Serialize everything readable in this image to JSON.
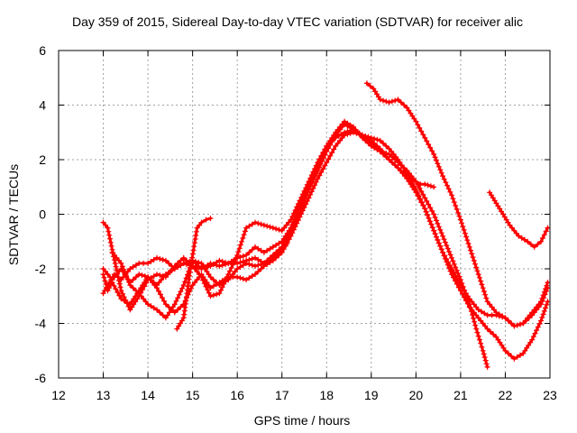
{
  "chart_data": {
    "type": "scatter",
    "title": "Day 359 of 2015, Sidereal Day-to-day VTEC variation (SDTVAR) for receiver alic",
    "xlabel": "GPS time / hours",
    "ylabel": "SDTVAR / TECUs",
    "xlim": [
      12,
      23
    ],
    "ylim": [
      -6,
      6
    ],
    "xticks": [
      12,
      13,
      14,
      15,
      16,
      17,
      18,
      19,
      20,
      21,
      22,
      23
    ],
    "yticks": [
      -6,
      -4,
      -2,
      0,
      2,
      4,
      6
    ],
    "grid": true,
    "marker": "+",
    "color": "#ff0000",
    "series": [
      {
        "name": "trace-1",
        "x": [
          13.0,
          13.1,
          13.25,
          13.4,
          13.6,
          13.8,
          14.0,
          14.2,
          14.4,
          14.6,
          14.8,
          15.0,
          15.2,
          15.4,
          15.6,
          15.8,
          16.0,
          16.2,
          16.4,
          16.6,
          16.8,
          17.0,
          17.2,
          17.4,
          17.6,
          17.8,
          18.0,
          18.2,
          18.4,
          18.6,
          18.8,
          19.0,
          19.2,
          19.4,
          19.6,
          19.8,
          20.0,
          20.2,
          20.4,
          20.6,
          20.8,
          21.0,
          21.2,
          21.4,
          21.6,
          21.8,
          22.0,
          22.2,
          22.4,
          22.6,
          22.8,
          22.95
        ],
        "y": [
          -2.9,
          -2.6,
          -2.2,
          -2.4,
          -2.0,
          -1.8,
          -1.8,
          -1.6,
          -1.7,
          -2.0,
          -1.8,
          -1.9,
          -2.0,
          -1.9,
          -1.7,
          -1.8,
          -1.8,
          -1.7,
          -1.6,
          -1.8,
          -1.5,
          -1.2,
          -0.6,
          0.1,
          0.9,
          1.6,
          2.3,
          2.9,
          3.3,
          3.1,
          2.9,
          2.6,
          2.3,
          2.0,
          1.7,
          1.3,
          0.8,
          0.2,
          -0.6,
          -1.4,
          -2.2,
          -2.8,
          -3.4,
          -3.8,
          -4.2,
          -4.5,
          -5.0,
          -5.3,
          -5.1,
          -4.6,
          -3.9,
          -3.2
        ]
      },
      {
        "name": "trace-2",
        "x": [
          13.0,
          13.2,
          13.4,
          13.6,
          13.8,
          14.0,
          14.2,
          14.4,
          14.6,
          14.8,
          15.0,
          15.2,
          15.4,
          15.6,
          15.8,
          16.0,
          16.2,
          16.4,
          16.6,
          16.8,
          17.0,
          17.2,
          17.4,
          17.6,
          17.8,
          18.0,
          18.2,
          18.4,
          18.6,
          18.8,
          19.0,
          19.2,
          19.4,
          19.6,
          19.8,
          20.0,
          20.2,
          20.4,
          20.6,
          20.8,
          21.0,
          21.2,
          21.35,
          21.5,
          21.6
        ],
        "y": [
          -2.0,
          -2.4,
          -2.0,
          -2.5,
          -2.2,
          -2.3,
          -2.6,
          -2.2,
          -2.0,
          -1.8,
          -1.7,
          -2.0,
          -1.8,
          -1.9,
          -1.8,
          -1.6,
          -1.5,
          -1.2,
          -1.4,
          -1.2,
          -1.0,
          -0.5,
          0.3,
          1.1,
          1.8,
          2.5,
          3.0,
          3.4,
          3.2,
          2.8,
          2.5,
          2.3,
          2.2,
          1.9,
          1.6,
          1.2,
          0.6,
          0.0,
          -0.8,
          -1.6,
          -2.4,
          -3.3,
          -4.2,
          -5.0,
          -5.6
        ]
      },
      {
        "name": "trace-3",
        "x": [
          13.0,
          13.1,
          13.2,
          13.4,
          13.6,
          13.8,
          14.0,
          14.2,
          14.4,
          14.6,
          14.8,
          15.0,
          15.2,
          15.4,
          15.6,
          15.8,
          16.0,
          16.2,
          16.4,
          16.6,
          16.8,
          17.0,
          17.2,
          17.4,
          17.6,
          17.8,
          18.0,
          18.2,
          18.4,
          18.6,
          18.8,
          19.0,
          19.2,
          19.4,
          19.6,
          19.8,
          20.0,
          20.2,
          20.4,
          20.6,
          20.8,
          21.0,
          21.2,
          21.4,
          21.6,
          21.8,
          22.0,
          22.2,
          22.4,
          22.6,
          22.8,
          22.95
        ],
        "y": [
          -2.2,
          -2.8,
          -2.5,
          -3.1,
          -3.3,
          -2.8,
          -2.3,
          -2.7,
          -3.3,
          -3.6,
          -3.3,
          -2.6,
          -2.2,
          -2.7,
          -2.5,
          -2.3,
          -2.3,
          -2.4,
          -2.2,
          -1.9,
          -1.7,
          -1.4,
          -0.8,
          -0.1,
          0.6,
          1.3,
          1.9,
          2.5,
          2.9,
          3.0,
          2.9,
          2.8,
          2.7,
          2.4,
          2.0,
          1.5,
          0.9,
          0.2,
          -0.6,
          -1.4,
          -2.0,
          -2.6,
          -3.1,
          -3.5,
          -3.7,
          -3.7,
          -3.8,
          -4.1,
          -4.0,
          -3.7,
          -3.3,
          -2.7
        ]
      },
      {
        "name": "trace-4",
        "x": [
          13.0,
          13.1,
          13.2,
          13.4,
          13.6,
          13.8,
          14.0,
          14.2,
          14.4,
          14.6,
          14.8,
          15.0,
          15.2,
          15.4,
          15.6,
          15.8,
          16.0,
          16.2,
          16.4,
          16.6,
          16.8,
          17.0,
          17.2,
          17.4,
          17.6,
          17.8,
          18.0,
          18.2,
          18.4,
          18.6,
          18.8,
          19.0,
          19.2,
          19.4,
          19.6,
          19.8,
          20.0,
          20.1,
          20.2,
          20.4
        ],
        "y": [
          -0.3,
          -0.5,
          -1.3,
          -2.8,
          -3.5,
          -3.0,
          -2.4,
          -2.2,
          -2.3,
          -1.9,
          -1.6,
          -1.9,
          -2.3,
          -3.0,
          -2.9,
          -2.2,
          -1.5,
          -0.5,
          -0.3,
          -0.4,
          -0.5,
          -0.6,
          -0.2,
          0.5,
          1.2,
          1.9,
          2.5,
          2.8,
          3.0,
          3.1,
          2.9,
          2.7,
          2.4,
          2.0,
          1.7,
          1.4,
          1.2,
          1.1,
          1.1,
          1.0
        ]
      },
      {
        "name": "trace-5",
        "x": [
          14.65,
          14.8,
          14.95,
          15.1,
          15.2,
          15.3,
          15.4
        ],
        "y": [
          -4.2,
          -3.8,
          -2.0,
          -0.5,
          -0.3,
          -0.2,
          -0.15
        ]
      },
      {
        "name": "trace-6",
        "x": [
          13.2,
          13.4,
          13.6,
          13.8,
          14.0,
          14.2,
          14.4,
          14.6,
          14.8,
          15.0,
          15.2,
          15.4,
          15.6,
          15.8,
          16.0,
          16.2,
          16.4,
          16.6,
          16.8,
          17.0,
          17.1
        ],
        "y": [
          -1.4,
          -1.8,
          -2.6,
          -2.9,
          -3.3,
          -3.5,
          -3.8,
          -3.3,
          -2.6,
          -1.7,
          -1.8,
          -2.3,
          -2.6,
          -2.4,
          -2.0,
          -1.8,
          -1.9,
          -1.8,
          -1.6,
          -1.3,
          -1.1
        ]
      },
      {
        "name": "trace-7",
        "x": [
          18.9,
          19.05,
          19.2,
          19.4,
          19.6,
          19.8,
          20.0,
          20.2,
          20.4,
          20.6,
          20.8,
          21.0,
          21.2,
          21.4,
          21.6,
          21.8,
          22.0,
          22.2,
          22.4,
          22.6,
          22.8,
          22.95
        ],
        "y": [
          4.8,
          4.6,
          4.2,
          4.1,
          4.2,
          3.9,
          3.4,
          2.8,
          2.2,
          1.4,
          0.7,
          -0.2,
          -1.2,
          -2.2,
          -3.2,
          -3.6,
          -3.8,
          -4.1,
          -4.0,
          -3.6,
          -3.2,
          -2.5
        ]
      },
      {
        "name": "trace-8",
        "x": [
          21.65,
          21.8,
          21.95,
          22.1,
          22.3,
          22.5,
          22.65,
          22.8,
          22.95
        ],
        "y": [
          0.8,
          0.4,
          0.0,
          -0.4,
          -0.8,
          -1.0,
          -1.2,
          -1.0,
          -0.5
        ]
      }
    ]
  }
}
